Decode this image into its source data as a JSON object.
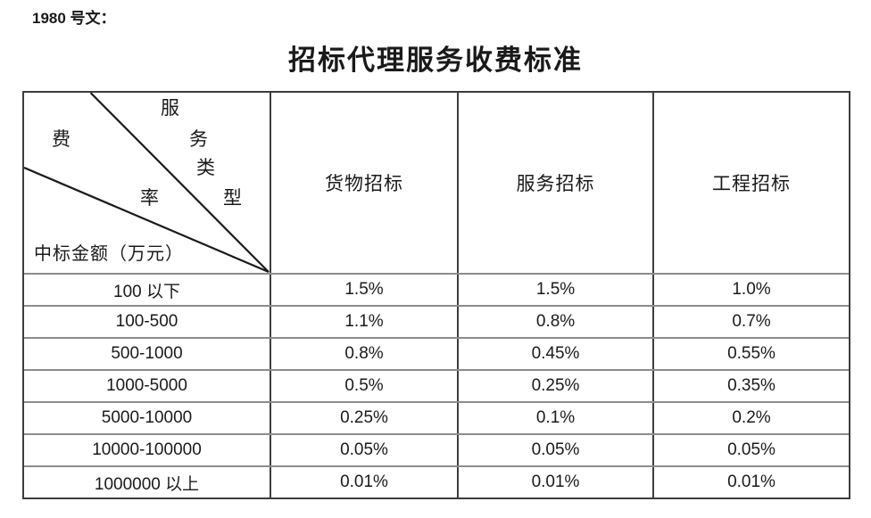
{
  "doc": {
    "ref_label": "1980 号文：",
    "title": "招标代理服务收费标准"
  },
  "table": {
    "corner": {
      "fee_chars": [
        "费",
        "率"
      ],
      "service_type_chars": [
        "服",
        "务",
        "类",
        "型"
      ],
      "row_axis_label": "中标金额（万元）"
    },
    "columns": [
      "货物招标",
      "服务招标",
      "工程招标"
    ],
    "rows": [
      {
        "amount": "100 以下",
        "values": [
          "1.5%",
          "1.5%",
          "1.0%"
        ]
      },
      {
        "amount": "100-500",
        "values": [
          "1.1%",
          "0.8%",
          "0.7%"
        ]
      },
      {
        "amount": "500-1000",
        "values": [
          "0.8%",
          "0.45%",
          "0.55%"
        ]
      },
      {
        "amount": "1000-5000",
        "values": [
          "0.5%",
          "0.25%",
          "0.35%"
        ]
      },
      {
        "amount": "5000-10000",
        "values": [
          "0.25%",
          "0.1%",
          "0.2%"
        ]
      },
      {
        "amount": "10000-100000",
        "values": [
          "0.05%",
          "0.05%",
          "0.05%"
        ]
      },
      {
        "amount": "1000000 以上",
        "values": [
          "0.01%",
          "0.01%",
          "0.01%"
        ]
      }
    ]
  },
  "colors": {
    "text": "#1a1a1a",
    "outer_border": "#3d3d3d",
    "vertical_divider": "#3d3d3d",
    "horizontal_divider": "#8c8c8c",
    "diagonal_line": "#1a1a1a",
    "background": "#ffffff"
  }
}
